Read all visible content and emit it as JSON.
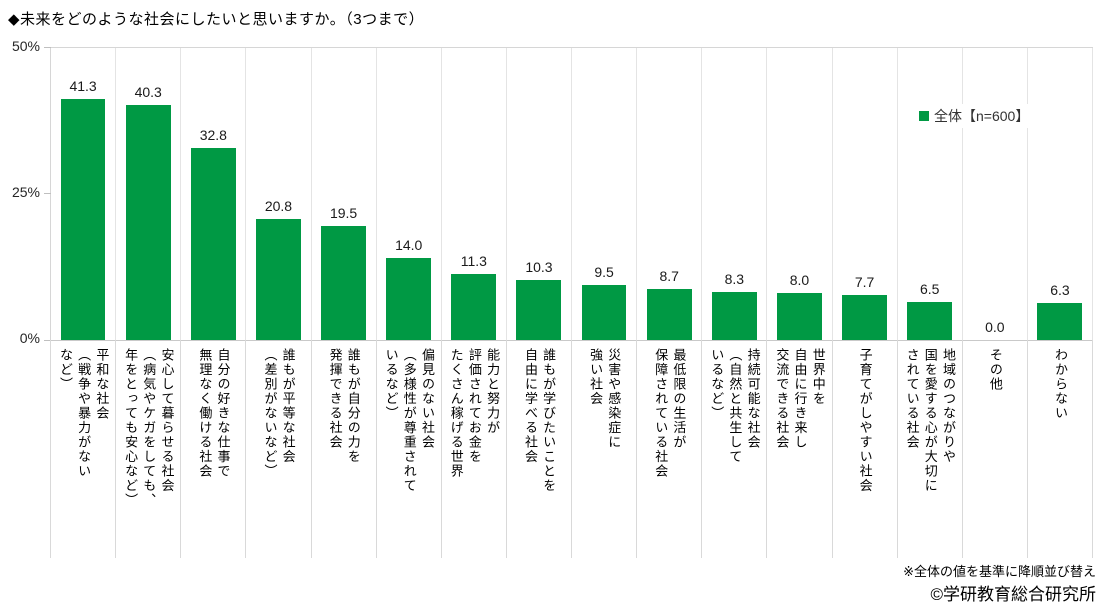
{
  "title": "◆未来をどのような社会にしたいと思いますか。（3つまで）",
  "legend": {
    "label": "全体【n=600】",
    "color": "#009944"
  },
  "y_axis": {
    "ticks": [
      "50%",
      "25%",
      "0%"
    ],
    "max": 50
  },
  "footnotes": {
    "sort_note": "※全体の値を基準に降順並び替え",
    "copyright": "©学研教育総合研究所"
  },
  "chart_data": {
    "type": "bar",
    "title": "◆未来をどのような社会にしたいと思いますか。（3つまで）",
    "xlabel": "",
    "ylabel": "%",
    "ylim": [
      0,
      50
    ],
    "grid": "vertical-category-separators",
    "legend_position": "upper-right-inside",
    "series_name": "全体【n=600】",
    "bar_color": "#009944",
    "categories": [
      "平和な社会\n（戦争や暴力がない\nなど）",
      "安心して暮らせる社会\n（病気やケガをしても、\n年をとっても安心など）",
      "自分の好きな仕事で\n無理なく働ける社会",
      "誰もが平等な社会\n（差別がないなど）",
      "誰もが自分の力を\n発揮できる社会",
      "偏見のない社会\n（多様性が尊重されて\nいるなど）",
      "能力と努力が\n評価されてお金を\nたくさん稼げる世界",
      "誰もが学びたいことを\n自由に学べる社会",
      "災害や感染症に\n強い社会",
      "最低限の生活が\n保障されている社会",
      "持続可能な社会\n（自然と共生して\nいるなど）",
      "世界中を\n自由に行き来し\n交流できる社会",
      "子育てがしやすい社会",
      "地域のつながりや\n国を愛する心が大切に\nされている社会",
      "その他",
      "わからない"
    ],
    "values": [
      41.3,
      40.3,
      32.8,
      20.8,
      19.5,
      14.0,
      11.3,
      10.3,
      9.5,
      8.7,
      8.3,
      8.0,
      7.7,
      6.5,
      0.0,
      6.3
    ]
  }
}
